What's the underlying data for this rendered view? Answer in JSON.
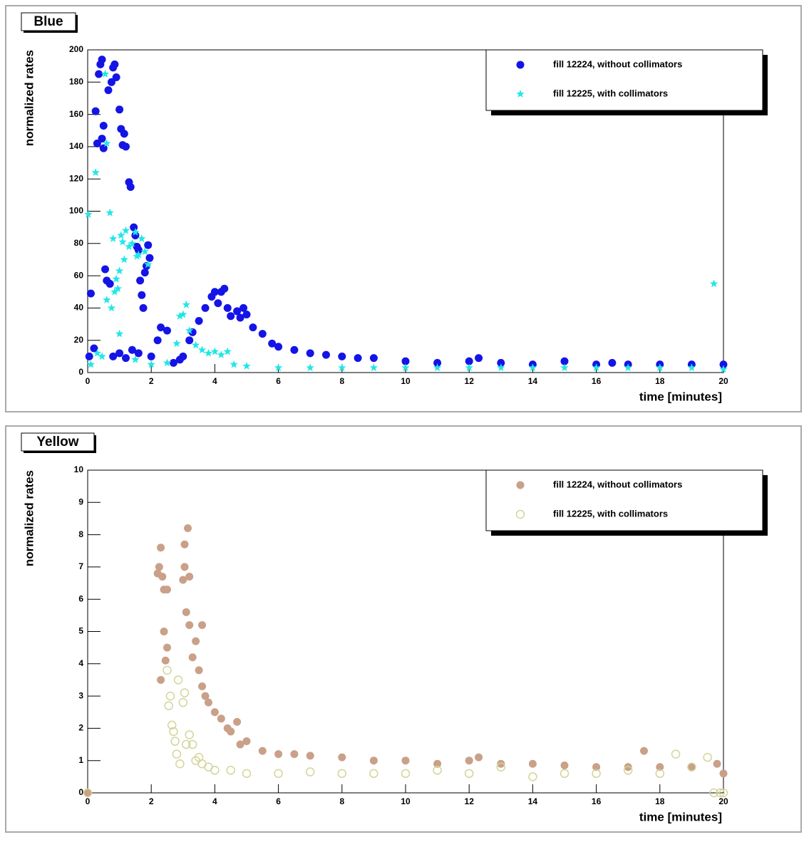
{
  "chart_data": [
    {
      "type": "scatter",
      "title": "Blue",
      "x_label": "time [minutes]",
      "y_label": "normalized rates",
      "xlim": [
        0,
        20
      ],
      "xticks": [
        0,
        2,
        4,
        6,
        8,
        10,
        12,
        14,
        16,
        18,
        20
      ],
      "ylim": [
        0,
        200
      ],
      "yticks": [
        0,
        20,
        40,
        60,
        80,
        100,
        120,
        140,
        160,
        180,
        200
      ],
      "legend": "top-right",
      "series": [
        {
          "name": "fill 12224, without collimators",
          "color": "#1414e6",
          "marker": "circle",
          "x": [
            0.05,
            0.1,
            0.2,
            0.25,
            0.3,
            0.35,
            0.4,
            0.45,
            0.45,
            0.5,
            0.5,
            0.55,
            0.6,
            0.65,
            0.7,
            0.75,
            0.8,
            0.85,
            0.9,
            1.0,
            1.05,
            1.1,
            1.15,
            1.2,
            1.3,
            1.35,
            1.45,
            1.5,
            1.55,
            1.6,
            1.65,
            1.7,
            1.75,
            1.8,
            1.85,
            1.9,
            1.95,
            0.8,
            1.0,
            1.2,
            1.4,
            1.6,
            2.0,
            2.2,
            2.3,
            2.5,
            2.7,
            2.9,
            3.0,
            3.2,
            3.3,
            3.5,
            3.7,
            3.9,
            4.0,
            4.1,
            4.2,
            4.3,
            4.4,
            4.5,
            4.7,
            4.8,
            4.9,
            5.0,
            5.2,
            5.5,
            5.8,
            6.0,
            6.5,
            7.0,
            7.5,
            8.0,
            8.5,
            9.0,
            10,
            11,
            12,
            12.3,
            13,
            14,
            15,
            16,
            16.5,
            17,
            18,
            19,
            20
          ],
          "values": [
            10,
            49,
            15,
            162,
            142,
            185,
            191,
            194,
            145,
            139,
            153,
            64,
            57,
            175,
            55,
            180,
            189,
            191,
            183,
            163,
            151,
            141,
            148,
            140,
            118,
            115,
            90,
            85,
            78,
            76,
            57,
            48,
            40,
            62,
            66,
            79,
            71,
            10,
            12,
            9,
            14,
            12,
            10,
            20,
            28,
            26,
            6,
            8,
            10,
            20,
            25,
            32,
            40,
            47,
            50,
            43,
            50,
            52,
            40,
            35,
            38,
            34,
            40,
            36,
            28,
            24,
            18,
            16,
            14,
            12,
            11,
            10,
            9,
            9,
            7,
            6,
            7,
            9,
            6,
            5,
            7,
            5,
            6,
            5,
            5,
            5,
            5
          ]
        },
        {
          "name": "fill 12225, with collimators",
          "color": "#22e6e6",
          "marker": "star",
          "x": [
            0.02,
            0.1,
            0.25,
            0.3,
            0.45,
            0.55,
            0.6,
            0.6,
            0.7,
            0.75,
            0.8,
            0.85,
            0.9,
            0.95,
            1.0,
            1.05,
            1.1,
            1.15,
            1.2,
            1.3,
            1.4,
            1.5,
            1.55,
            1.6,
            1.7,
            1.8,
            1.9,
            1.0,
            1.5,
            2.0,
            2.5,
            2.8,
            2.9,
            3.0,
            3.1,
            3.2,
            3.4,
            3.6,
            3.8,
            4.0,
            4.2,
            4.4,
            4.6,
            5,
            6,
            7,
            8,
            9,
            10,
            11,
            12,
            13,
            14,
            15,
            16,
            17,
            18,
            19,
            19.7,
            20
          ],
          "values": [
            98,
            5,
            124,
            12,
            10,
            185,
            142,
            45,
            99,
            40,
            83,
            50,
            58,
            52,
            63,
            85,
            81,
            70,
            88,
            78,
            80,
            87,
            72,
            73,
            83,
            75,
            67,
            24,
            8,
            5,
            6,
            18,
            35,
            36,
            42,
            26,
            17,
            14,
            12,
            13,
            11,
            13,
            5,
            4,
            3,
            3,
            3,
            3,
            3,
            3,
            3,
            3,
            3,
            3,
            3,
            3,
            3,
            3,
            55,
            2
          ]
        }
      ]
    },
    {
      "type": "scatter",
      "title": "Yellow",
      "x_label": "time [minutes]",
      "y_label": "normalized rates",
      "xlim": [
        0,
        20
      ],
      "xticks": [
        0,
        2,
        4,
        6,
        8,
        10,
        12,
        14,
        16,
        18,
        20
      ],
      "ylim": [
        0,
        10
      ],
      "yticks": [
        0,
        1,
        2,
        3,
        4,
        5,
        6,
        7,
        8,
        9,
        10
      ],
      "legend": "top-right",
      "series": [
        {
          "name": "fill 12224, without collimators",
          "color": "#c9a088",
          "marker": "circle",
          "x": [
            0,
            2.2,
            2.25,
            2.3,
            2.3,
            2.35,
            2.4,
            2.4,
            2.45,
            2.5,
            2.5,
            3.0,
            3.05,
            3.05,
            3.1,
            3.15,
            3.2,
            3.2,
            3.3,
            3.4,
            3.5,
            3.6,
            3.6,
            3.7,
            3.8,
            4.0,
            4.2,
            4.4,
            4.5,
            4.7,
            4.8,
            5.0,
            5.5,
            6,
            6.5,
            7,
            8,
            9,
            10,
            11,
            12,
            12.3,
            13,
            14,
            15,
            16,
            17,
            17.5,
            18,
            19,
            19.8,
            20
          ],
          "values": [
            0,
            6.8,
            7.0,
            7.6,
            3.5,
            6.7,
            6.3,
            5.0,
            4.1,
            6.3,
            4.5,
            6.6,
            7.0,
            7.7,
            5.6,
            8.2,
            6.7,
            5.2,
            4.2,
            4.7,
            3.8,
            5.2,
            3.3,
            3.0,
            2.8,
            2.5,
            2.3,
            2.0,
            1.9,
            2.2,
            1.5,
            1.6,
            1.3,
            1.2,
            1.2,
            1.15,
            1.1,
            1.0,
            1.0,
            0.9,
            1.0,
            1.1,
            0.9,
            0.9,
            0.85,
            0.8,
            0.8,
            1.3,
            0.8,
            0.8,
            0.9,
            0.6
          ]
        },
        {
          "name": "fill 12225, with collimators",
          "color": "#d4d49a",
          "marker": "open-circle",
          "x": [
            0,
            2.5,
            2.55,
            2.6,
            2.65,
            2.7,
            2.75,
            2.8,
            2.85,
            2.9,
            3.0,
            3.05,
            3.1,
            3.2,
            3.3,
            3.4,
            3.5,
            3.6,
            3.8,
            4.0,
            4.5,
            5,
            6,
            7,
            8,
            9,
            10,
            11,
            12,
            13,
            14,
            15,
            16,
            17,
            18,
            18.5,
            19,
            19.5,
            19.7,
            19.9,
            20
          ],
          "values": [
            0,
            3.8,
            2.7,
            3.0,
            2.1,
            1.9,
            1.6,
            1.2,
            3.5,
            0.9,
            2.8,
            3.1,
            1.5,
            1.8,
            1.5,
            1.0,
            1.1,
            0.9,
            0.8,
            0.7,
            0.7,
            0.6,
            0.6,
            0.65,
            0.6,
            0.6,
            0.6,
            0.7,
            0.6,
            0.8,
            0.5,
            0.6,
            0.6,
            0.7,
            0.6,
            1.2,
            0.8,
            1.1,
            0,
            0,
            0
          ]
        }
      ]
    }
  ]
}
